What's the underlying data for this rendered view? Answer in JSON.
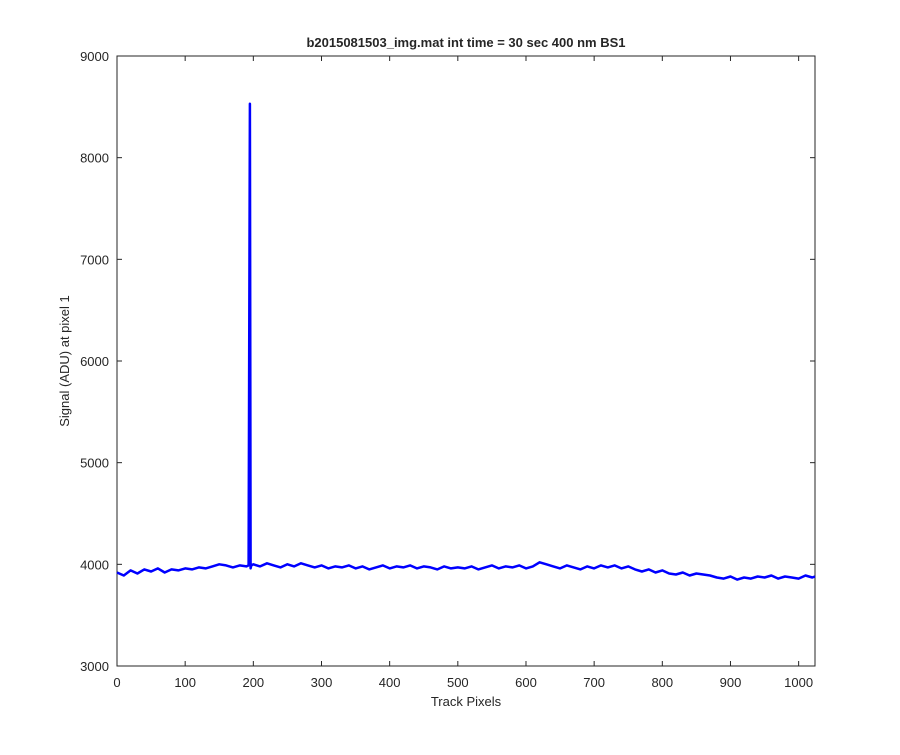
{
  "chart_data": {
    "type": "line",
    "title": "b2015081503_img.mat int time = 30 sec  400 nm BS1",
    "xlabel": "Track Pixels",
    "ylabel": "Signal (ADU) at pixel 1",
    "xlim": [
      0,
      1024
    ],
    "ylim": [
      3000,
      9000
    ],
    "xticks": [
      0,
      100,
      200,
      300,
      400,
      500,
      600,
      700,
      800,
      900,
      1000
    ],
    "yticks": [
      3000,
      4000,
      5000,
      6000,
      7000,
      8000,
      9000
    ],
    "grid": false,
    "line_color": "#0000FF",
    "series": [
      {
        "x": [
          0,
          10,
          20,
          30,
          40,
          50,
          60,
          70,
          80,
          90,
          100,
          110,
          120,
          130,
          140,
          150,
          160,
          170,
          180,
          190,
          193,
          195,
          196,
          197,
          200,
          210,
          220,
          230,
          240,
          250,
          260,
          270,
          280,
          290,
          300,
          310,
          320,
          330,
          340,
          350,
          360,
          370,
          380,
          390,
          400,
          410,
          420,
          430,
          440,
          450,
          460,
          470,
          480,
          490,
          500,
          510,
          520,
          530,
          540,
          550,
          560,
          570,
          580,
          590,
          600,
          610,
          620,
          630,
          640,
          650,
          660,
          670,
          680,
          690,
          700,
          710,
          720,
          730,
          740,
          750,
          760,
          770,
          780,
          790,
          800,
          810,
          820,
          830,
          840,
          850,
          860,
          870,
          880,
          890,
          900,
          910,
          920,
          930,
          940,
          950,
          960,
          970,
          980,
          990,
          1000,
          1010,
          1020,
          1024
        ],
        "y": [
          3920,
          3890,
          3940,
          3910,
          3950,
          3930,
          3960,
          3920,
          3950,
          3940,
          3960,
          3950,
          3970,
          3960,
          3980,
          4000,
          3990,
          3970,
          3990,
          3980,
          3990,
          8530,
          3960,
          3990,
          4000,
          3980,
          4010,
          3990,
          3970,
          4000,
          3980,
          4010,
          3990,
          3970,
          3990,
          3960,
          3980,
          3970,
          3990,
          3960,
          3980,
          3950,
          3970,
          3990,
          3960,
          3980,
          3970,
          3990,
          3960,
          3980,
          3970,
          3950,
          3980,
          3960,
          3970,
          3960,
          3980,
          3950,
          3970,
          3990,
          3960,
          3980,
          3970,
          3990,
          3960,
          3980,
          4020,
          4000,
          3980,
          3960,
          3990,
          3970,
          3950,
          3980,
          3960,
          3990,
          3970,
          3990,
          3960,
          3980,
          3950,
          3930,
          3950,
          3920,
          3940,
          3910,
          3900,
          3920,
          3890,
          3910,
          3900,
          3890,
          3870,
          3860,
          3880,
          3850,
          3870,
          3860,
          3880,
          3870,
          3890,
          3860,
          3880,
          3870,
          3860,
          3890,
          3870,
          3880
        ]
      }
    ]
  }
}
